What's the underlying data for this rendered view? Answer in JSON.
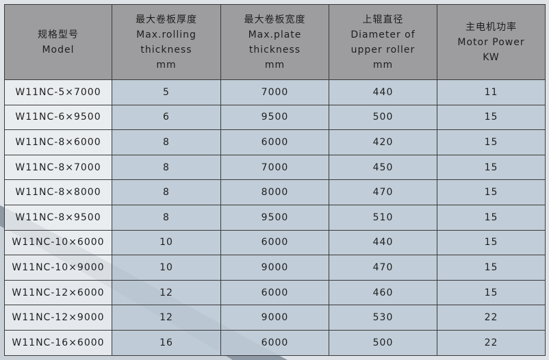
{
  "table": {
    "header": [
      [
        "规格型号",
        "Model"
      ],
      [
        "最大卷板厚度",
        "Max.rolling",
        "thickness",
        "mm"
      ],
      [
        "最大卷板宽度",
        "Max.plate",
        "thickness",
        "mm"
      ],
      [
        "上辊直径",
        "Diameter of",
        "upper roller",
        "mm"
      ],
      [
        "主电机功率",
        "Motor Power",
        "KW"
      ]
    ],
    "rows": [
      [
        "W11NC-5×7000",
        5,
        7000,
        440,
        11
      ],
      [
        "W11NC-6×9500",
        6,
        9500,
        500,
        15
      ],
      [
        "W11NC-8×6000",
        8,
        6000,
        420,
        15
      ],
      [
        "W11NC-8×7000",
        8,
        7000,
        450,
        15
      ],
      [
        "W11NC-8×8000",
        8,
        8000,
        470,
        15
      ],
      [
        "W11NC-8×9500",
        8,
        9500,
        510,
        15
      ],
      [
        "W11NC-10×6000",
        10,
        6000,
        440,
        15
      ],
      [
        "W11NC-10×9000",
        10,
        9000,
        470,
        15
      ],
      [
        "W11NC-12×6000",
        12,
        6000,
        460,
        15
      ],
      [
        "W11NC-12×9000",
        12,
        9000,
        530,
        22
      ],
      [
        "W11NC-16×6000",
        16,
        6000,
        500,
        22
      ]
    ]
  }
}
